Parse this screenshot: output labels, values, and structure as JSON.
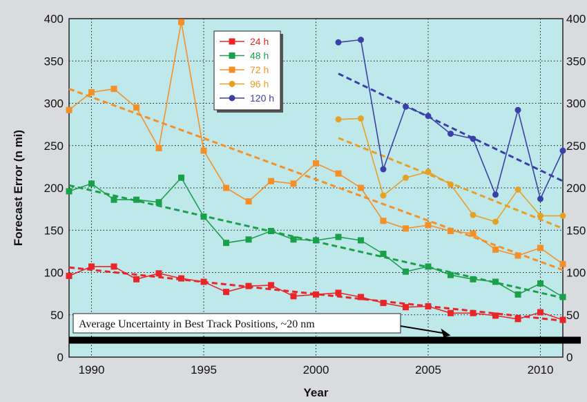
{
  "chart_data": {
    "type": "line",
    "title": "",
    "xlabel": "Year",
    "ylabel": "Forecast Error (n mi)",
    "xlim": [
      1989,
      2011
    ],
    "ylim": [
      0,
      400
    ],
    "xticks": [
      1990,
      1995,
      2000,
      2005,
      2010
    ],
    "yticks": [
      0,
      50,
      100,
      150,
      200,
      250,
      300,
      350,
      400
    ],
    "yticks_right": [
      0,
      50,
      100,
      150,
      200,
      250,
      300,
      350,
      400
    ],
    "grid": true,
    "legend_position": "top-center",
    "colors": {
      "plot_bg": "#bfe8ea",
      "page_bg": "#d9dbde",
      "grid": "#111111"
    },
    "series": [
      {
        "name": "24 h",
        "color": "#e8262a",
        "marker": "square",
        "x": [
          1989,
          1990,
          1991,
          1992,
          1993,
          1994,
          1995,
          1996,
          1997,
          1998,
          1999,
          2000,
          2001,
          2002,
          2003,
          2004,
          2005,
          2006,
          2007,
          2008,
          2009,
          2010,
          2011
        ],
        "values": [
          96,
          107,
          107,
          92,
          99,
          93,
          89,
          77,
          84,
          85,
          72,
          74,
          76,
          71,
          64,
          59,
          60,
          52,
          52,
          49,
          45,
          53,
          44
        ],
        "trend": [
          106,
          43
        ]
      },
      {
        "name": "48 h",
        "color": "#1aa04a",
        "marker": "square",
        "x": [
          1989,
          1990,
          1991,
          1992,
          1993,
          1994,
          1995,
          1996,
          1997,
          1998,
          1999,
          2000,
          2001,
          2002,
          2003,
          2004,
          2005,
          2006,
          2007,
          2008,
          2009,
          2010,
          2011
        ],
        "values": [
          196,
          205,
          186,
          186,
          183,
          212,
          166,
          135,
          139,
          149,
          139,
          138,
          142,
          138,
          122,
          101,
          107,
          97,
          92,
          89,
          74,
          87,
          71
        ],
        "trend": [
          203,
          70
        ]
      },
      {
        "name": "72 h",
        "color": "#f59028",
        "marker": "square",
        "x": [
          1989,
          1990,
          1991,
          1992,
          1993,
          1994,
          1995,
          1996,
          1997,
          1998,
          1999,
          2000,
          2001,
          2002,
          2003,
          2004,
          2005,
          2006,
          2007,
          2008,
          2009,
          2010,
          2011
        ],
        "values": [
          292,
          313,
          317,
          295,
          247,
          396,
          244,
          200,
          184,
          208,
          205,
          229,
          217,
          200,
          161,
          152,
          156,
          149,
          146,
          127,
          120,
          129,
          110
        ],
        "trend": [
          317,
          103
        ]
      },
      {
        "name": "96 h",
        "color": "#e5a125",
        "marker": "circle",
        "x": [
          2001,
          2002,
          2003,
          2004,
          2005,
          2006,
          2007,
          2008,
          2009,
          2010,
          2011
        ],
        "values": [
          281,
          282,
          191,
          212,
          219,
          204,
          168,
          160,
          198,
          167,
          167
        ],
        "trend": [
          259,
          152
        ]
      },
      {
        "name": "120 h",
        "color": "#3b3fa8",
        "marker": "circle",
        "x": [
          2001,
          2002,
          2003,
          2004,
          2005,
          2006,
          2007,
          2008,
          2009,
          2010,
          2011
        ],
        "values": [
          372,
          375,
          222,
          296,
          285,
          264,
          258,
          192,
          292,
          187,
          244
        ],
        "trend": [
          335,
          208
        ]
      }
    ],
    "annotations": [
      {
        "text": "Average Uncertainty in Best Track Positions, ~20 nm",
        "value": 20,
        "arrow_to_year": 2006
      }
    ]
  }
}
